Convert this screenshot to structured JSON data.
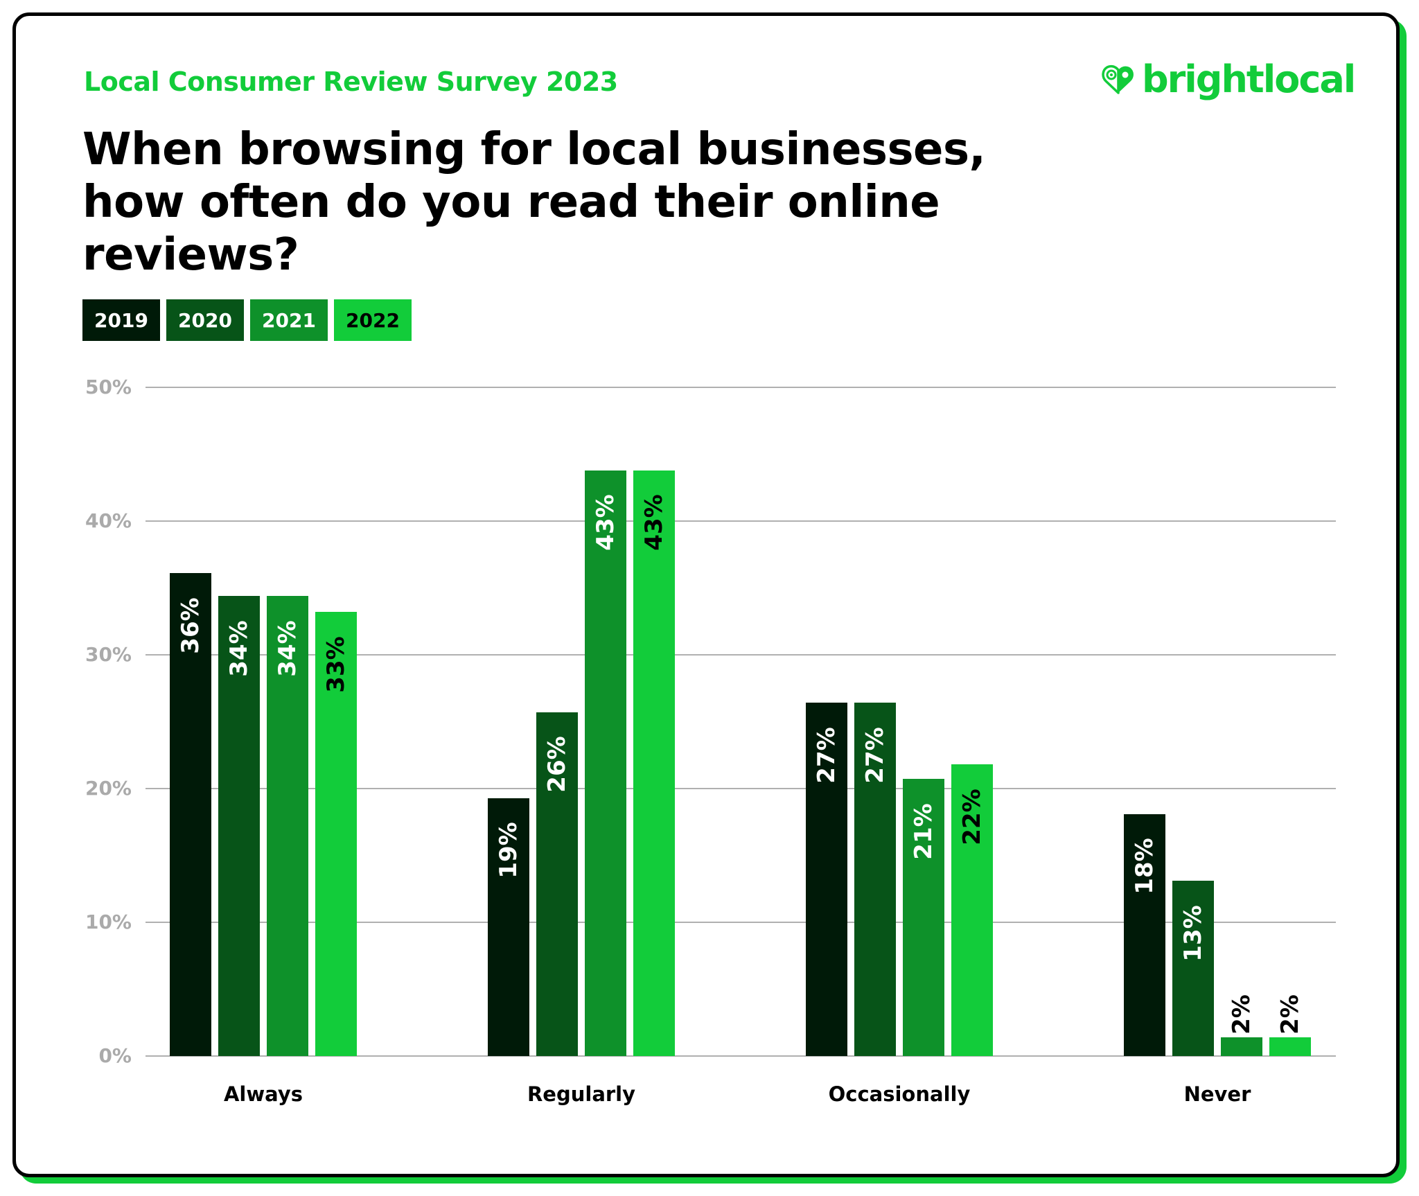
{
  "header": {
    "subtitle": "Local Consumer Review Survey 2023",
    "title": "When browsing for local businesses, how often do you read their online reviews?",
    "logo_text": "brightlocal",
    "logo_icon": "heart-pin-icon"
  },
  "colors": {
    "brand_green": "#12cc3a",
    "series": [
      "#001a08",
      "#075418",
      "#0e912a",
      "#12cc3a"
    ],
    "series_label_text": [
      "#ffffff",
      "#ffffff",
      "#ffffff",
      "#000000"
    ],
    "grid": "#b0b0b0",
    "tick_text": "#aaaaaa"
  },
  "legend": [
    {
      "label": "2019"
    },
    {
      "label": "2020"
    },
    {
      "label": "2021"
    },
    {
      "label": "2022"
    }
  ],
  "chart_data": {
    "type": "bar",
    "title": "When browsing for local businesses, how often do you read their online reviews?",
    "subtitle": "Local Consumer Review Survey 2023",
    "categories": [
      "Always",
      "Regularly",
      "Occasionally",
      "Never"
    ],
    "series": [
      {
        "name": "2019",
        "values": [
          36,
          19,
          27,
          18
        ],
        "labels": [
          "36%",
          "19%",
          "27%",
          "18%"
        ]
      },
      {
        "name": "2020",
        "values": [
          34,
          26,
          27,
          13
        ],
        "labels": [
          "34%",
          "26%",
          "27%",
          "13%"
        ]
      },
      {
        "name": "2021",
        "values": [
          34,
          43,
          21,
          2
        ],
        "labels": [
          "34%",
          "43%",
          "21%",
          "2%"
        ]
      },
      {
        "name": "2022",
        "values": [
          33,
          43,
          22,
          2
        ],
        "labels": [
          "33%",
          "43%",
          "22%",
          "2%"
        ]
      }
    ],
    "rendered_heights": [
      [
        36.1,
        19.3,
        26.4,
        18.1
      ],
      [
        34.4,
        25.7,
        26.4,
        13.1
      ],
      [
        34.4,
        43.8,
        20.7,
        1.4
      ],
      [
        33.2,
        43.8,
        21.8,
        1.4
      ]
    ],
    "xlabel": "",
    "ylabel": "",
    "ylim": [
      0,
      50
    ],
    "yticks": [
      "0%",
      "10%",
      "20%",
      "30%",
      "40%",
      "50%"
    ],
    "grid": true,
    "legend_position": "top-left"
  }
}
